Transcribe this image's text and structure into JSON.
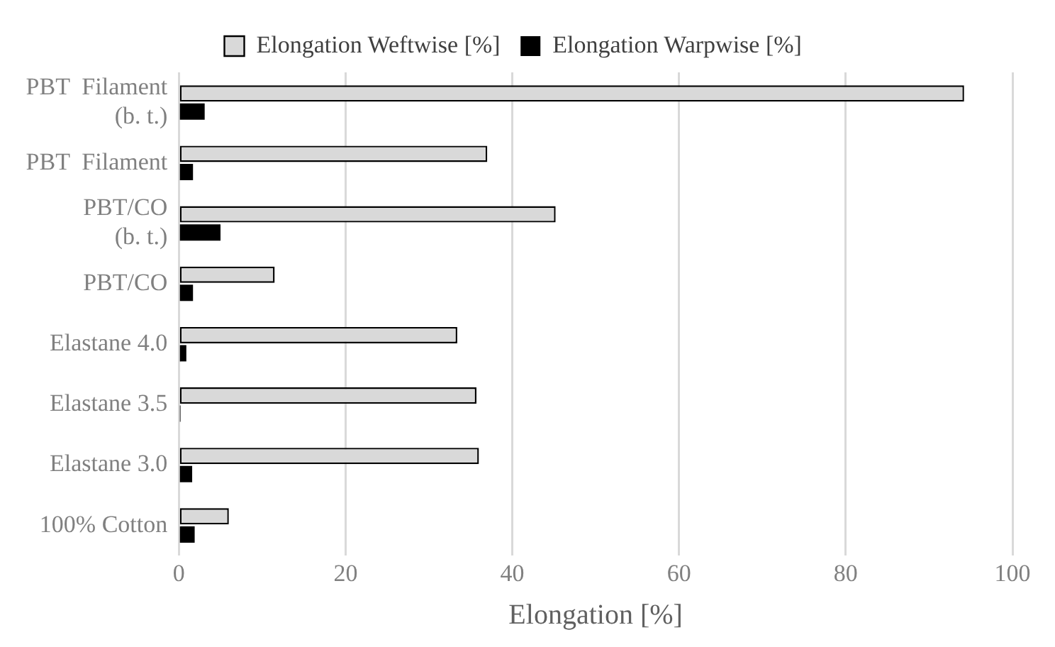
{
  "chart_data": {
    "type": "bar",
    "orientation": "horizontal",
    "xlabel": "Elongation [%]",
    "categories": [
      "PBT  Filament\n(b. t.)",
      "PBT  Filament",
      "PBT/CO\n(b. t.)",
      "PBT/CO",
      "Elastane 4.0",
      "Elastane 3.5",
      "Elastane 3.0",
      "100% Cotton"
    ],
    "series": [
      {
        "name": "Elongation Weftwise [%]",
        "color": "#d9d9d9",
        "values": [
          94.2,
          37.0,
          45.2,
          11.5,
          33.4,
          35.7,
          36.0,
          6.0
        ]
      },
      {
        "name": "Elongation Warpwise [%]",
        "color": "#000000",
        "values": [
          3.1,
          1.7,
          5.0,
          1.7,
          0.9,
          0.2,
          1.6,
          1.9
        ]
      }
    ],
    "xlim": [
      0,
      100
    ],
    "xticks": [
      0,
      20,
      40,
      60,
      80,
      100
    ],
    "grid": "x",
    "legend": "top"
  }
}
